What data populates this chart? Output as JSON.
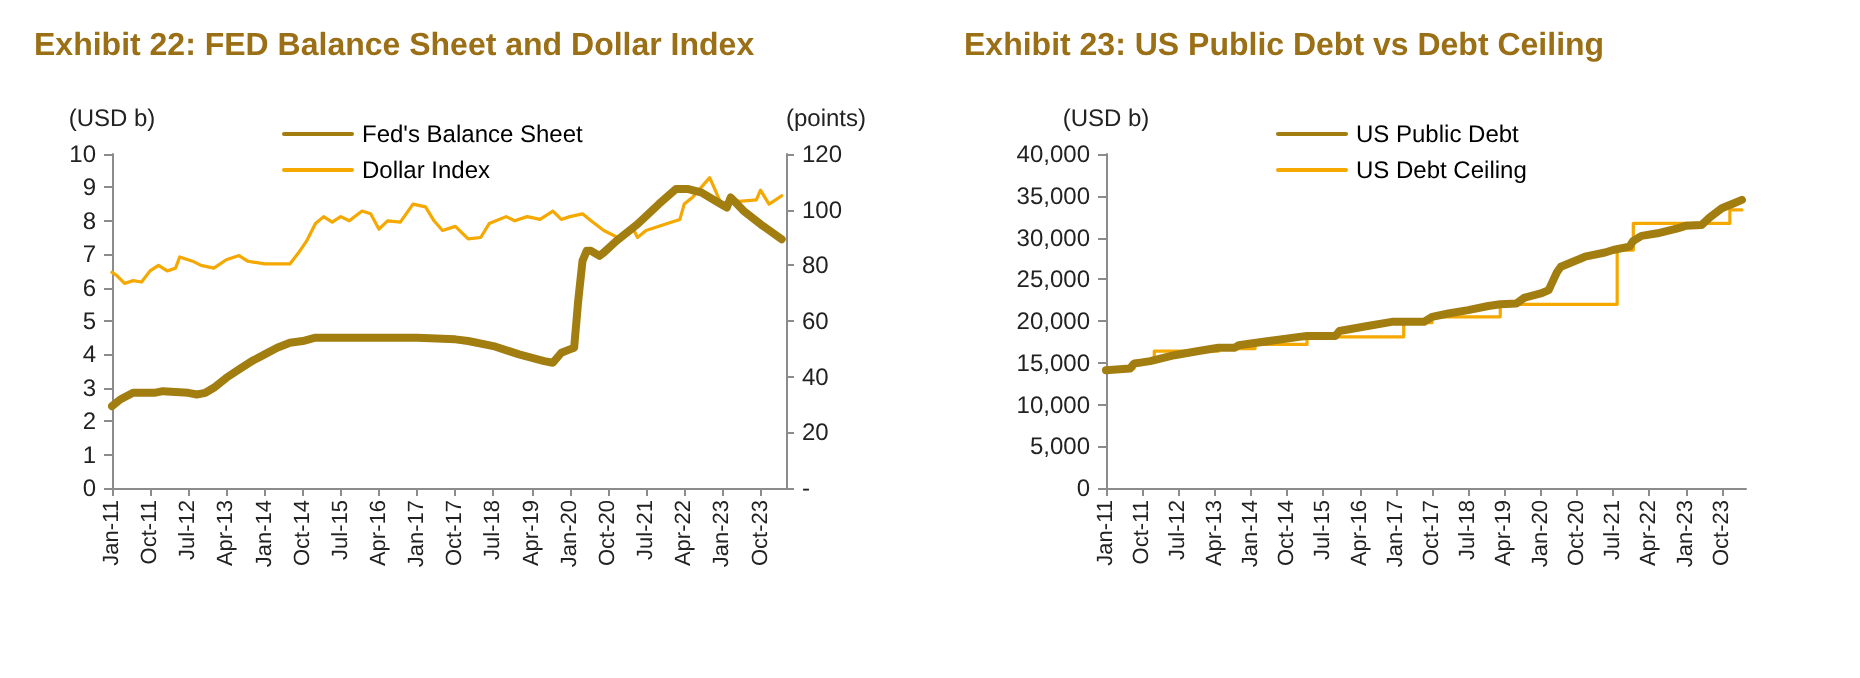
{
  "chart_data": [
    {
      "type": "line",
      "title": "Exhibit 22: FED Balance Sheet and Dollar Index",
      "ylabel": "(USD b)",
      "y2label": "(points)",
      "xlim": [
        "2011-01",
        "2024-04"
      ],
      "xticks": [
        {
          "value": "2011-01",
          "label": "Jan-11"
        },
        {
          "value": "2011-10",
          "label": "Oct-11"
        },
        {
          "value": "2012-07",
          "label": "Jul-12"
        },
        {
          "value": "2013-04",
          "label": "Apr-13"
        },
        {
          "value": "2014-01",
          "label": "Jan-14"
        },
        {
          "value": "2014-10",
          "label": "Oct-14"
        },
        {
          "value": "2015-07",
          "label": "Jul-15"
        },
        {
          "value": "2016-04",
          "label": "Apr-16"
        },
        {
          "value": "2017-01",
          "label": "Jan-17"
        },
        {
          "value": "2017-10",
          "label": "Oct-17"
        },
        {
          "value": "2018-07",
          "label": "Jul-18"
        },
        {
          "value": "2019-04",
          "label": "Apr-19"
        },
        {
          "value": "2020-01",
          "label": "Jan-20"
        },
        {
          "value": "2020-10",
          "label": "Oct-20"
        },
        {
          "value": "2021-07",
          "label": "Jul-21"
        },
        {
          "value": "2022-04",
          "label": "Apr-22"
        },
        {
          "value": "2023-01",
          "label": "Jan-23"
        },
        {
          "value": "2023-10",
          "label": "Oct-23"
        }
      ],
      "ylim": [
        0,
        10
      ],
      "yticks": [
        0,
        1,
        2,
        3,
        4,
        5,
        6,
        7,
        8,
        9,
        10
      ],
      "y2lim": [
        0,
        120
      ],
      "y2ticks": [
        {
          "value": 0,
          "label": "-"
        },
        20,
        40,
        60,
        80,
        100,
        120
      ],
      "grid": false,
      "legend": "top",
      "series": [
        {
          "name": "Fed's Balance Sheet",
          "color": "#a27d10",
          "x": [
            "2011-01",
            "2011-03",
            "2011-06",
            "2011-11",
            "2012-01",
            "2012-07",
            "2012-09",
            "2012-11",
            "2013-01",
            "2013-04",
            "2013-07",
            "2013-10",
            "2014-01",
            "2014-04",
            "2014-07",
            "2014-10",
            "2015-01",
            "2015-06",
            "2016-01",
            "2017-01",
            "2017-10",
            "2018-01",
            "2018-07",
            "2019-01",
            "2019-07",
            "2019-09",
            "2019-11",
            "2020-01",
            "2020-02",
            "2020-03",
            "2020-04",
            "2020-05",
            "2020-06",
            "2020-08",
            "2020-09",
            "2020-12",
            "2021-05",
            "2021-10",
            "2022-02",
            "2022-05",
            "2022-08",
            "2022-12",
            "2023-02",
            "2023-03",
            "2023-06",
            "2023-10",
            "2024-03"
          ],
          "values": [
            2.45,
            2.65,
            2.85,
            2.85,
            2.9,
            2.85,
            2.8,
            2.85,
            3.0,
            3.3,
            3.55,
            3.8,
            4.0,
            4.2,
            4.35,
            4.4,
            4.5,
            4.5,
            4.5,
            4.5,
            4.45,
            4.4,
            4.25,
            4.0,
            3.8,
            3.75,
            4.05,
            4.15,
            4.2,
            5.6,
            6.8,
            7.1,
            7.1,
            6.95,
            7.05,
            7.4,
            7.9,
            8.5,
            8.95,
            8.95,
            8.85,
            8.55,
            8.4,
            8.7,
            8.3,
            7.9,
            7.45
          ]
        },
        {
          "name": "Dollar Index",
          "color": "#f5a800",
          "axis": "y2",
          "x": [
            "2011-01",
            "2011-02",
            "2011-04",
            "2011-06",
            "2011-08",
            "2011-10",
            "2011-12",
            "2012-02",
            "2012-04",
            "2012-05",
            "2012-08",
            "2012-10",
            "2013-01",
            "2013-04",
            "2013-07",
            "2013-09",
            "2014-01",
            "2014-07",
            "2014-09",
            "2014-11",
            "2015-01",
            "2015-03",
            "2015-05",
            "2015-07",
            "2015-09",
            "2015-12",
            "2016-02",
            "2016-04",
            "2016-06",
            "2016-09",
            "2016-12",
            "2017-03",
            "2017-05",
            "2017-07",
            "2017-10",
            "2018-01",
            "2018-04",
            "2018-06",
            "2018-10",
            "2018-12",
            "2019-03",
            "2019-06",
            "2019-09",
            "2019-11",
            "2020-01",
            "2020-04",
            "2020-06",
            "2020-09",
            "2020-11",
            "2021-01",
            "2021-04",
            "2021-05",
            "2021-07",
            "2021-12",
            "2022-03",
            "2022-04",
            "2022-06",
            "2022-08",
            "2022-10",
            "2022-11",
            "2023-01",
            "2023-03",
            "2023-05",
            "2023-09",
            "2023-10",
            "2023-12",
            "2024-01",
            "2024-03"
          ],
          "values": [
            77.5,
            76.5,
            73.5,
            74.5,
            74,
            78,
            80,
            78,
            79,
            83,
            81.5,
            80,
            79,
            82,
            83.5,
            81.5,
            80.5,
            80.5,
            84.5,
            89,
            95,
            97.5,
            95.5,
            97.5,
            96,
            99.5,
            98.5,
            93,
            96,
            95.5,
            102,
            101,
            96,
            92.5,
            94,
            89.5,
            90,
            95,
            97.5,
            96,
            97.5,
            96.5,
            99.5,
            96.5,
            97.5,
            98.5,
            96,
            92.5,
            91,
            89.5,
            93,
            90,
            92.5,
            95,
            96.5,
            102,
            104.5,
            108,
            111.5,
            108,
            101,
            104.5,
            103,
            103.5,
            107,
            102,
            103,
            105
          ]
        }
      ]
    },
    {
      "type": "line",
      "title": "Exhibit 23: US Public Debt vs Debt Ceiling",
      "ylabel": "(USD b)",
      "xlim": [
        "2011-01",
        "2024-04"
      ],
      "xticks": [
        {
          "value": "2011-01",
          "label": "Jan-11"
        },
        {
          "value": "2011-10",
          "label": "Oct-11"
        },
        {
          "value": "2012-07",
          "label": "Jul-12"
        },
        {
          "value": "2013-04",
          "label": "Apr-13"
        },
        {
          "value": "2014-01",
          "label": "Jan-14"
        },
        {
          "value": "2014-10",
          "label": "Oct-14"
        },
        {
          "value": "2015-07",
          "label": "Jul-15"
        },
        {
          "value": "2016-04",
          "label": "Apr-16"
        },
        {
          "value": "2017-01",
          "label": "Jan-17"
        },
        {
          "value": "2017-10",
          "label": "Oct-17"
        },
        {
          "value": "2018-07",
          "label": "Jul-18"
        },
        {
          "value": "2019-04",
          "label": "Apr-19"
        },
        {
          "value": "2020-01",
          "label": "Jan-20"
        },
        {
          "value": "2020-10",
          "label": "Oct-20"
        },
        {
          "value": "2021-07",
          "label": "Jul-21"
        },
        {
          "value": "2022-04",
          "label": "Apr-22"
        },
        {
          "value": "2023-01",
          "label": "Jan-23"
        },
        {
          "value": "2023-10",
          "label": "Oct-23"
        }
      ],
      "ylim": [
        0,
        40000
      ],
      "yticks": [
        0,
        {
          "value": 5000,
          "label": "5,000"
        },
        {
          "value": 10000,
          "label": "10,000"
        },
        {
          "value": 15000,
          "label": "15,000"
        },
        {
          "value": 20000,
          "label": "20,000"
        },
        {
          "value": 25000,
          "label": "25,000"
        },
        {
          "value": 30000,
          "label": "30,000"
        },
        {
          "value": 35000,
          "label": "35,000"
        },
        {
          "value": 40000,
          "label": "40,000"
        }
      ],
      "grid": false,
      "legend": "top left",
      "series": [
        {
          "name": "US Public Debt",
          "color": "#a27d10",
          "x": [
            "2011-01",
            "2011-07",
            "2011-08",
            "2011-12",
            "2012-06",
            "2012-12",
            "2013-05",
            "2013-09",
            "2013-10",
            "2014-01",
            "2014-07",
            "2015-01",
            "2015-03",
            "2015-10",
            "2015-11",
            "2016-06",
            "2016-12",
            "2017-03",
            "2017-08",
            "2017-10",
            "2018-02",
            "2018-07",
            "2018-12",
            "2019-03",
            "2019-07",
            "2019-09",
            "2020-01",
            "2020-03",
            "2020-05",
            "2020-06",
            "2020-12",
            "2021-05",
            "2021-07",
            "2021-11",
            "2021-12",
            "2022-02",
            "2022-06",
            "2022-11",
            "2023-01",
            "2023-05",
            "2023-07",
            "2023-10",
            "2024-01",
            "2024-03"
          ],
          "values": [
            14100,
            14300,
            14900,
            15200,
            15900,
            16400,
            16800,
            16800,
            17100,
            17300,
            17700,
            18100,
            18200,
            18200,
            18800,
            19400,
            19900,
            19900,
            19900,
            20500,
            20900,
            21300,
            21800,
            22000,
            22100,
            22800,
            23300,
            23700,
            25800,
            26500,
            27700,
            28200,
            28500,
            28900,
            29600,
            30200,
            30500,
            31100,
            31400,
            31500,
            32400,
            33500,
            34100,
            34500
          ]
        },
        {
          "name": "US Debt Ceiling",
          "color": "#f5a800",
          "type": "step",
          "x": [
            "2011-01",
            "2011-08",
            "2012-01",
            "2013-05",
            "2014-02",
            "2015-03",
            "2017-03",
            "2017-10",
            "2019-03",
            "2021-08",
            "2021-12",
            "2023-12",
            "2024-03"
          ],
          "values": [
            14300,
            15200,
            16400,
            16700,
            17200,
            18100,
            19800,
            20500,
            22000,
            28500,
            31700,
            33300,
            33300
          ]
        }
      ]
    }
  ]
}
